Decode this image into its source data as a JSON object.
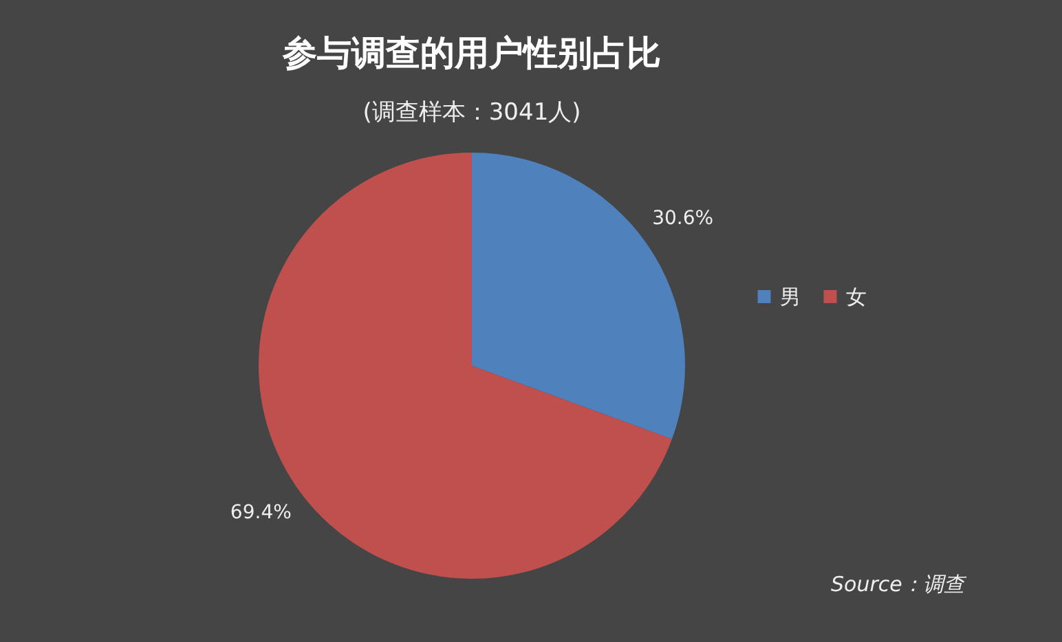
{
  "chart_data": {
    "type": "pie",
    "title": "参与调查的用户性别占比",
    "subtitle": "(调查样本：3041人)",
    "categories": [
      "男",
      "女"
    ],
    "values": [
      30.6,
      69.4
    ],
    "colors": [
      "#4f81bd",
      "#c0504d"
    ],
    "value_labels": [
      "30.6%",
      "69.4%"
    ],
    "legend": "right",
    "annotations": [
      "Source：调查"
    ]
  }
}
